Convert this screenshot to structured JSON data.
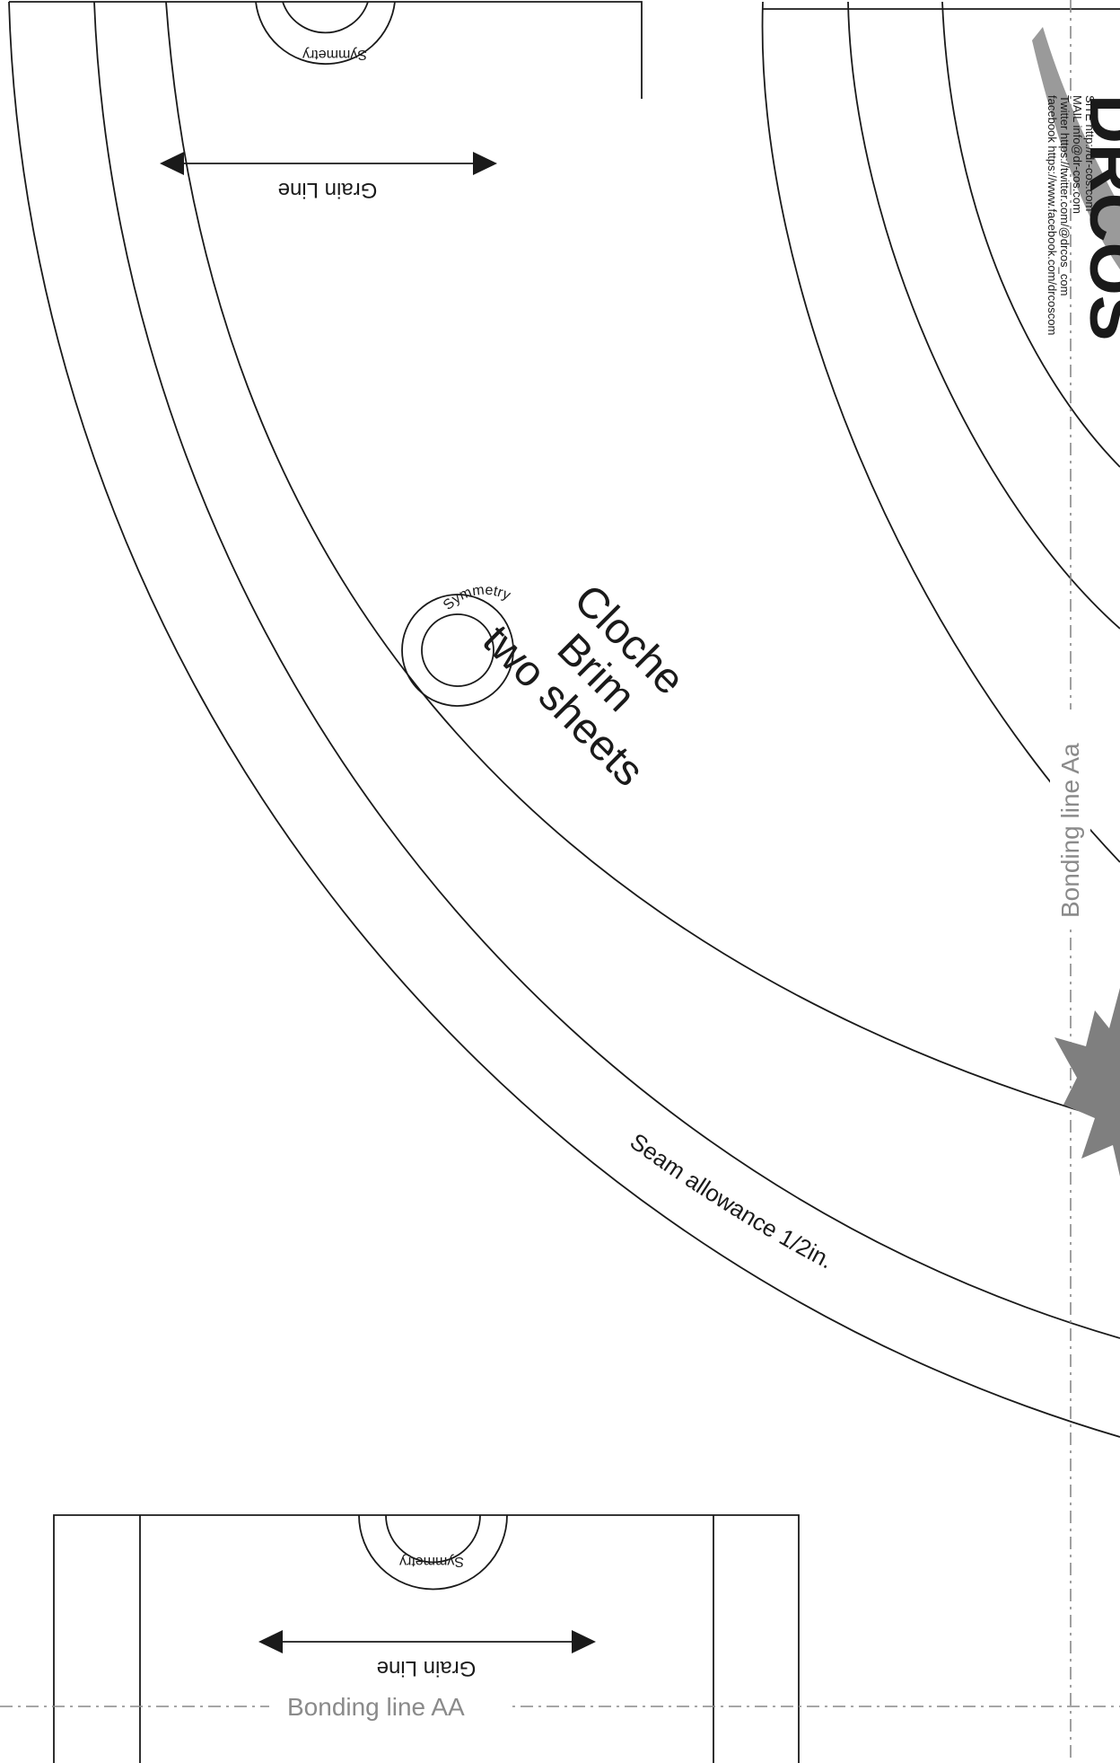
{
  "piece": {
    "title_line1": "Cloche",
    "title_line2": "Brim",
    "title_line3": "two sheets",
    "seam_allowance": "Seam allowance 1/2in."
  },
  "markers": {
    "grain_line": "Grain Line",
    "symmetry": "Symmetry"
  },
  "bonding": {
    "vertical_label": "Bonding line Aa",
    "horizontal_label": "Bonding line AA"
  },
  "brand": {
    "site": "SITE http://dr-cos.com",
    "mail": "MAIL info@dr-cos.com",
    "twitter": "Twitter https://twitter.com/@drcos_com",
    "facebook": "facebook https://www.facebook.com/drcoscom",
    "logo_text": "DRCOS"
  },
  "colors": {
    "line": "#1a1a1a",
    "guide": "#888888",
    "logo_grey": "#9a9a9a"
  }
}
